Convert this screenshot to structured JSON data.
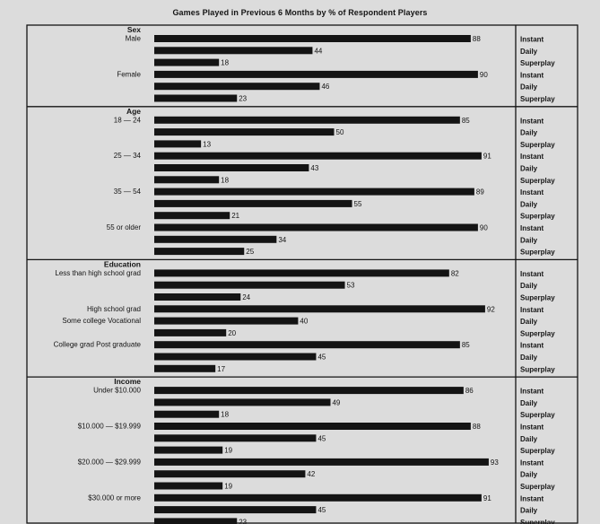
{
  "chart_data": {
    "type": "bar",
    "orientation": "horizontal",
    "title": "Games Played in Previous 6 Months by % of Respondent Players",
    "xlabel": "",
    "ylabel": "",
    "xlim": [
      0,
      100
    ],
    "grid": false,
    "legend": "none",
    "series_names": [
      "Instant",
      "Daily",
      "Superplay"
    ],
    "colors": {
      "bar": "#141414",
      "background": "#dcdcdc",
      "border": "#141414"
    },
    "sections": [
      {
        "name": "Sex",
        "groups": [
          {
            "label": "Male",
            "values": [
              88,
              44,
              18
            ]
          },
          {
            "label": "Female",
            "values": [
              90,
              46,
              23
            ]
          }
        ]
      },
      {
        "name": "Age",
        "groups": [
          {
            "label": "18 — 24",
            "values": [
              85,
              50,
              13
            ]
          },
          {
            "label": "25 — 34",
            "values": [
              91,
              43,
              18
            ]
          },
          {
            "label": "35 — 54",
            "values": [
              89,
              55,
              21
            ]
          },
          {
            "label": "55 or older",
            "values": [
              90,
              34,
              25
            ]
          }
        ]
      },
      {
        "name": "Education",
        "groups": [
          {
            "label": "Less than high school grad",
            "values": [
              82,
              53,
              24
            ]
          },
          {
            "label": "High school grad",
            "values": [
              92,
              40,
              20
            ],
            "label2": "Some college Vocational"
          },
          {
            "label": "College grad Post graduate",
            "values": [
              85,
              45,
              17
            ]
          }
        ]
      },
      {
        "name": "Income",
        "groups": [
          {
            "label": "Under $10.000",
            "values": [
              86,
              49,
              18
            ]
          },
          {
            "label": "$10.000 — $19.999",
            "values": [
              88,
              45,
              19
            ]
          },
          {
            "label": "$20.000 — $29.999",
            "values": [
              93,
              42,
              19
            ]
          },
          {
            "label": "$30.000 or more",
            "values": [
              91,
              45,
              23
            ]
          }
        ]
      }
    ]
  }
}
